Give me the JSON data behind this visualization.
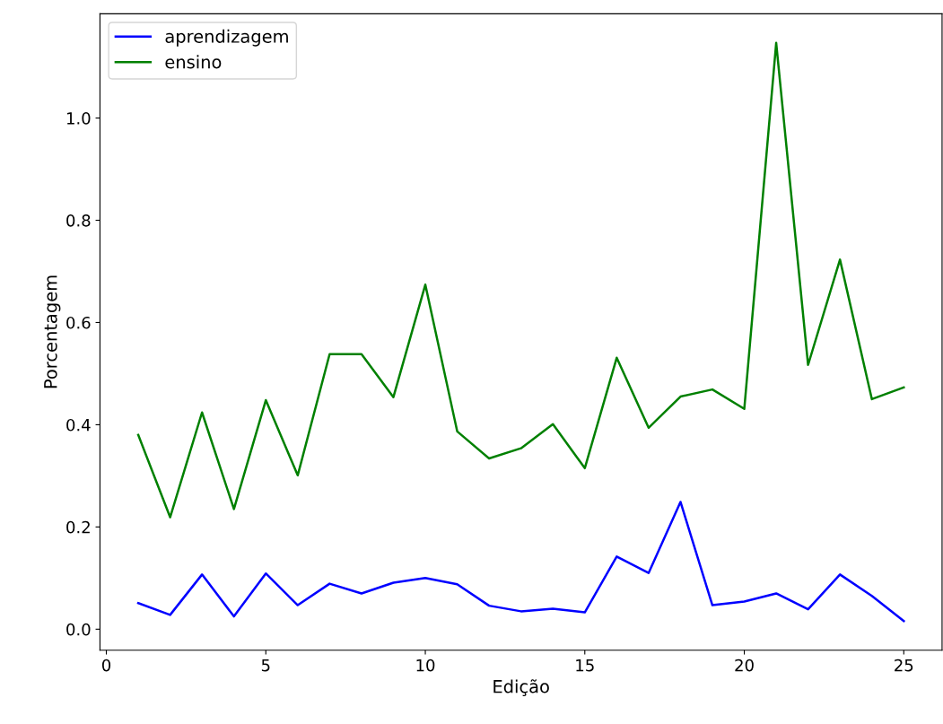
{
  "chart_data": {
    "type": "line",
    "xlabel": "Edição",
    "ylabel": "Porcentagem",
    "x": [
      1,
      2,
      3,
      4,
      5,
      6,
      7,
      8,
      9,
      10,
      11,
      12,
      13,
      14,
      15,
      16,
      17,
      18,
      19,
      20,
      21,
      22,
      23,
      24,
      25
    ],
    "series": [
      {
        "name": "aprendizagem",
        "color": "#0000ff",
        "values": [
          0.051,
          0.028,
          0.107,
          0.025,
          0.109,
          0.047,
          0.089,
          0.07,
          0.091,
          0.1,
          0.088,
          0.046,
          0.035,
          0.04,
          0.033,
          0.142,
          0.11,
          0.249,
          0.047,
          0.054,
          0.07,
          0.039,
          0.107,
          0.065,
          0.016
        ]
      },
      {
        "name": "ensino",
        "color": "#008000",
        "values": [
          0.38,
          0.219,
          0.424,
          0.235,
          0.448,
          0.301,
          0.538,
          0.538,
          0.454,
          0.674,
          0.387,
          0.334,
          0.354,
          0.401,
          0.315,
          0.531,
          0.394,
          0.455,
          0.469,
          0.431,
          1.147,
          0.517,
          0.723,
          0.45,
          0.473
        ]
      }
    ],
    "xlim": [
      -0.2,
      26.2
    ],
    "ylim": [
      -0.041,
      1.204
    ],
    "xticks": [
      0,
      5,
      10,
      15,
      20,
      25
    ],
    "yticks": [
      {
        "value": 0,
        "label": "0.0"
      },
      {
        "value": 0.2,
        "label": "0.2"
      },
      {
        "value": 0.4,
        "label": "0.4"
      },
      {
        "value": 0.6,
        "label": "0.6"
      },
      {
        "value": 0.8,
        "label": "0.8"
      },
      {
        "value": 1.0,
        "label": "1.0"
      }
    ],
    "legend": "top left",
    "grid": false
  }
}
